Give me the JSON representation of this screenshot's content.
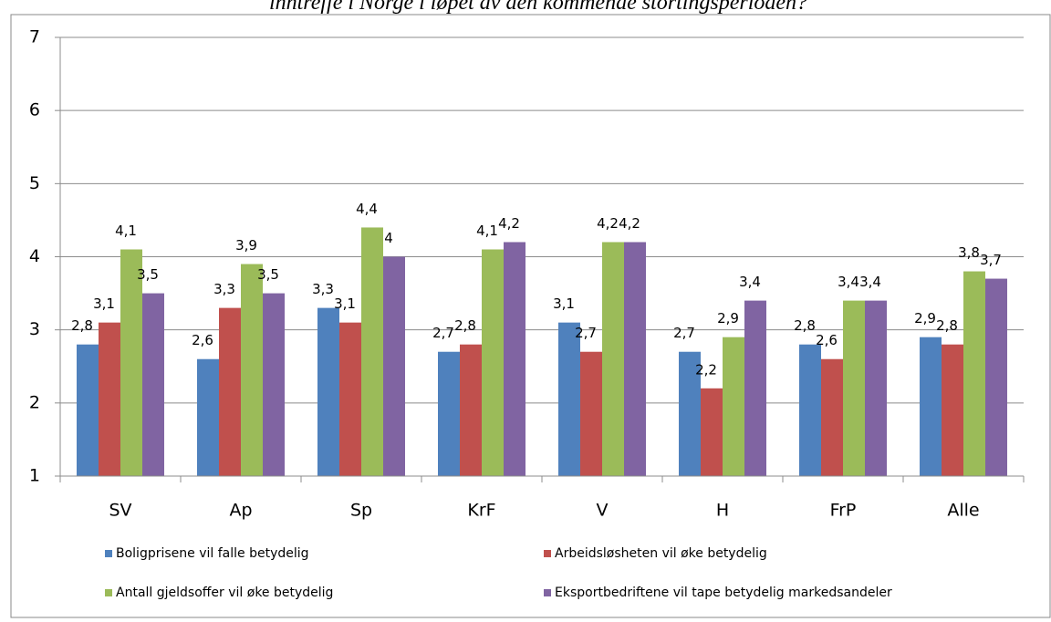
{
  "chart_data": {
    "type": "bar",
    "title": "inntreffe i Norge i løpet av den kommende stortingsperioden?",
    "categories": [
      "SV",
      "Ap",
      "Sp",
      "KrF",
      "V",
      "H",
      "FrP",
      "Alle"
    ],
    "series": [
      {
        "name": "Boligprisene vil falle betydelig",
        "color": "#4f81bd",
        "values": [
          2.8,
          2.6,
          3.3,
          2.7,
          3.1,
          2.7,
          2.8,
          2.9
        ],
        "value_labels": [
          "2,8",
          "2,6",
          "3,3",
          "2,7",
          "3,1",
          "2,7",
          "2,8",
          "2,9"
        ]
      },
      {
        "name": "Arbeidsløsheten vil øke betydelig",
        "color": "#c0504d",
        "values": [
          3.1,
          3.3,
          3.1,
          2.8,
          2.7,
          2.2,
          2.6,
          2.8
        ],
        "value_labels": [
          "3,1",
          "3,3",
          "3,1",
          "2,8",
          "2,7",
          "2,2",
          "2,6",
          "2,8"
        ]
      },
      {
        "name": "Antall gjeldsoffer vil øke betydelig",
        "color": "#9bbb59",
        "values": [
          4.1,
          3.9,
          4.4,
          4.1,
          4.2,
          2.9,
          3.4,
          3.8
        ],
        "value_labels": [
          "4,1",
          "3,9",
          "4,4",
          "4,1",
          "4,2",
          "2,9",
          "3,4",
          "3,8"
        ]
      },
      {
        "name": "Eksportbedriftene vil tape betydelig markedsandeler",
        "color": "#8064a2",
        "values": [
          3.5,
          3.5,
          4,
          4.2,
          4.2,
          3.4,
          3.4,
          3.7
        ],
        "value_labels": [
          "3,5",
          "3,5",
          "4",
          "4,2",
          "4,2",
          "3,4",
          "3,4",
          "3,7"
        ]
      }
    ],
    "ylim": [
      1,
      7
    ],
    "yticks": [
      1,
      2,
      3,
      4,
      5,
      6,
      7
    ],
    "grid": true,
    "legend": "bottom"
  }
}
